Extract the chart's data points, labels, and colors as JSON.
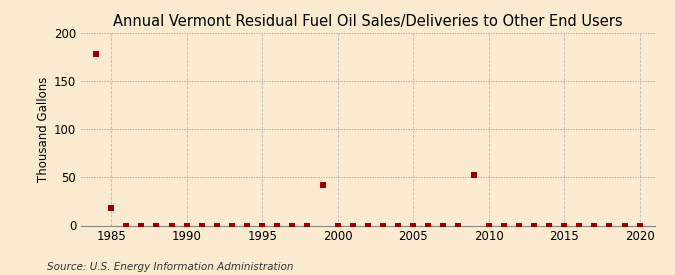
{
  "title": "Annual Vermont Residual Fuel Oil Sales/Deliveries to Other End Users",
  "ylabel": "Thousand Gallons",
  "source_text": "Source: U.S. Energy Information Administration",
  "background_color": "#faebd0",
  "plot_bg_color": "#faebd0",
  "marker_color": "#990000",
  "xlim": [
    1983,
    2021
  ],
  "ylim": [
    0,
    200
  ],
  "yticks": [
    0,
    50,
    100,
    150,
    200
  ],
  "xticks": [
    1985,
    1990,
    1995,
    2000,
    2005,
    2010,
    2015,
    2020
  ],
  "years": [
    1984,
    1985,
    1986,
    1987,
    1988,
    1989,
    1990,
    1991,
    1992,
    1993,
    1994,
    1995,
    1996,
    1997,
    1998,
    1999,
    2000,
    2001,
    2002,
    2003,
    2004,
    2005,
    2006,
    2007,
    2008,
    2009,
    2010,
    2011,
    2012,
    2013,
    2014,
    2015,
    2016,
    2017,
    2018,
    2019,
    2020
  ],
  "values": [
    178,
    18,
    0,
    0,
    0,
    0,
    0,
    0,
    0,
    0,
    0,
    0,
    0,
    0,
    0,
    42,
    0,
    0,
    0,
    0,
    0,
    0,
    0,
    0,
    0,
    52,
    0,
    0,
    0,
    0,
    0,
    0,
    0,
    0,
    0,
    0,
    0
  ],
  "title_fontsize": 10.5,
  "ylabel_fontsize": 8.5,
  "tick_fontsize": 8.5,
  "source_fontsize": 7.5
}
